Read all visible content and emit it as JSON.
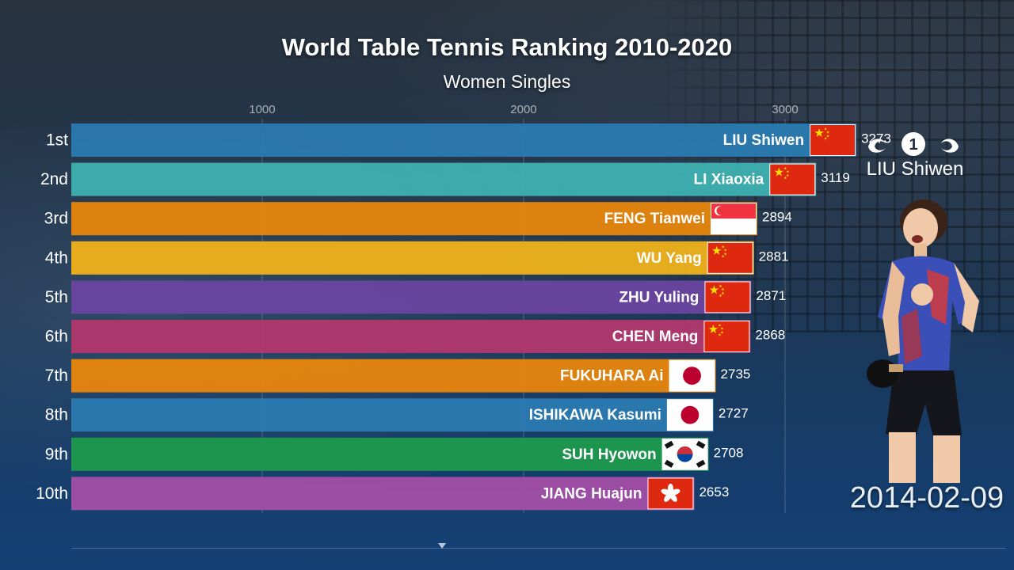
{
  "chart_data": {
    "type": "bar",
    "title": "World Table Tennis Ranking 2010-2020",
    "subtitle": "Women Singles",
    "xlim": [
      270,
      3300
    ],
    "ticks": [
      1000,
      2000,
      3000
    ],
    "grid": true,
    "ranks": [
      "1st",
      "2nd",
      "3rd",
      "4th",
      "5th",
      "6th",
      "7th",
      "8th",
      "9th",
      "10th"
    ],
    "categories": [
      "LIU Shiwen",
      "LI Xiaoxia",
      "FENG Tianwei",
      "WU Yang",
      "ZHU Yuling",
      "CHEN Meng",
      "FUKUHARA Ai",
      "ISHIKAWA Kasumi",
      "SUH Hyowon",
      "JIANG Huajun"
    ],
    "values": [
      3273,
      3119,
      2894,
      2881,
      2871,
      2868,
      2735,
      2727,
      2708,
      2653
    ],
    "countries": [
      "china",
      "china",
      "singapore",
      "china",
      "china",
      "china",
      "japan",
      "japan",
      "korea",
      "hong-kong"
    ],
    "colors": [
      "#2a7ab0",
      "#3eb0b0",
      "#e8860c",
      "#f0b21a",
      "#6a44a0",
      "#b2386e",
      "#e8860c",
      "#2a7ab0",
      "#1e9a4e",
      "#a34ea6"
    ]
  },
  "sidebar": {
    "rank_number": "1",
    "leader_name": "LIU Shiwen",
    "date": "2014-02-09"
  },
  "colors": {
    "china_red": "#de2910",
    "china_star": "#ffde00",
    "japan_red": "#bc002d",
    "singapore_red": "#ef3340",
    "hk_red": "#de2910",
    "korea_red": "#cd2e3a",
    "korea_blue": "#0047a0"
  }
}
